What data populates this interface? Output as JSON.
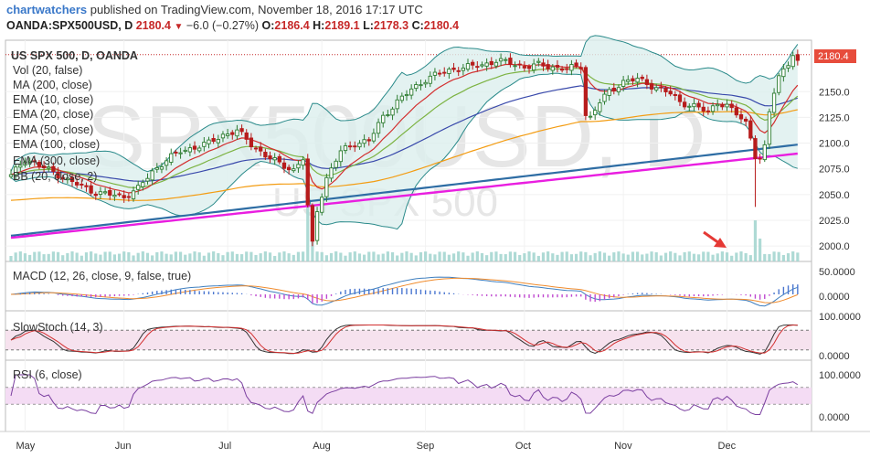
{
  "header": {
    "brand": "chartwatchers",
    "published": "published on TradingView.com, November 18, 2016 17:17 UTC",
    "symbol": "OANDA:SPX500USD, D",
    "last": "2180.4",
    "change": "−6.0 (−0.27%)",
    "o_label": "O:",
    "o": "2186.4",
    "h_label": "H:",
    "h": "2189.1",
    "l_label": "L:",
    "l": "2178.3",
    "c_label": "C:",
    "c": "2180.4"
  },
  "watermark": {
    "ticker": "SPX500USD, D",
    "name": "US SPX 500"
  },
  "legend": {
    "main": [
      "US SPX 500, D, OANDA",
      "Vol (20, false)",
      "MA (200, close)",
      "EMA (10, close)",
      "EMA (20, close)",
      "EMA (50, close)",
      "EMA (100, close)",
      "EMA (300, close)",
      "BB (20, close, 2)"
    ],
    "macd": "MACD (12, 26, close, 9, false, true)",
    "stoch": "SlowStoch (14, 3)",
    "rsi": "RSI (6, close)"
  },
  "colors": {
    "up": "#2e7d32",
    "down": "#b71c1c",
    "bb": "#2a8a8a",
    "bb_fill": "#dcefee",
    "ma200": "#e91ee0",
    "ema10": "#d32f2f",
    "ema20": "#7cb342",
    "ema50": "#3949ab",
    "ema100": "#f39c12",
    "ema300": "#2e6da4",
    "volume": "#a5d6d0",
    "last_badge": "#e74c3c",
    "arrow": "#e53935",
    "stoch_fill": "#f6e2ee",
    "rsi_fill": "#f4dcf4"
  },
  "chart_data": {
    "type": "candlestick",
    "period": "daily",
    "x_ticks": [
      "May",
      "Jun",
      "Jul",
      "Aug",
      "Sep",
      "Oct",
      "Nov",
      "Dec"
    ],
    "y_ticks": [
      "2150.0",
      "2125.0",
      "2100.0",
      "2075.0",
      "2050.0",
      "2025.0",
      "2000.0"
    ],
    "ylim": [
      1985,
      2200
    ],
    "last_price_label": "2180.4",
    "close_path": [
      [
        0,
        2068
      ],
      [
        3,
        2085
      ],
      [
        6,
        2078
      ],
      [
        9,
        2072
      ],
      [
        12,
        2064
      ],
      [
        15,
        2058
      ],
      [
        18,
        2052
      ],
      [
        21,
        2050
      ],
      [
        24,
        2048
      ],
      [
        27,
        2056
      ],
      [
        30,
        2072
      ],
      [
        33,
        2084
      ],
      [
        36,
        2092
      ],
      [
        39,
        2096
      ],
      [
        42,
        2100
      ],
      [
        45,
        2108
      ],
      [
        48,
        2112
      ],
      [
        51,
        2099
      ],
      [
        54,
        2088
      ],
      [
        57,
        2080
      ],
      [
        60,
        2074
      ],
      [
        62,
        2085
      ],
      [
        63,
        2038
      ],
      [
        64,
        2002
      ],
      [
        65,
        2035
      ],
      [
        67,
        2066
      ],
      [
        70,
        2092
      ],
      [
        73,
        2100
      ],
      [
        76,
        2102
      ],
      [
        79,
        2126
      ],
      [
        82,
        2140
      ],
      [
        85,
        2152
      ],
      [
        88,
        2162
      ],
      [
        91,
        2168
      ],
      [
        94,
        2172
      ],
      [
        97,
        2174
      ],
      [
        100,
        2176
      ],
      [
        103,
        2180
      ],
      [
        106,
        2178
      ],
      [
        109,
        2174
      ],
      [
        112,
        2176
      ],
      [
        115,
        2174
      ],
      [
        118,
        2172
      ],
      [
        120,
        2174
      ],
      [
        121,
        2175
      ],
      [
        122,
        2128
      ],
      [
        123,
        2125
      ],
      [
        125,
        2140
      ],
      [
        127,
        2150
      ],
      [
        130,
        2160
      ],
      [
        133,
        2162
      ],
      [
        136,
        2156
      ],
      [
        138,
        2152
      ],
      [
        140,
        2148
      ],
      [
        142,
        2140
      ],
      [
        145,
        2136
      ],
      [
        148,
        2130
      ],
      [
        150,
        2140
      ],
      [
        152,
        2136
      ],
      [
        154,
        2128
      ],
      [
        156,
        2120
      ],
      [
        157,
        2106
      ],
      [
        158,
        2088
      ],
      [
        159,
        2084
      ],
      [
        160,
        2095
      ],
      [
        161,
        2130
      ],
      [
        162,
        2150
      ],
      [
        163,
        2165
      ],
      [
        164,
        2172
      ],
      [
        165,
        2178
      ],
      [
        166,
        2186
      ],
      [
        167,
        2180
      ]
    ],
    "ohlc_last": {
      "open": 2186.4,
      "high": 2189.1,
      "low": 2178.3,
      "close": 2180.4
    },
    "macd": {
      "y_ticks": [
        "50.0000",
        "0.0000"
      ]
    },
    "stoch": {
      "y_ticks": [
        "100.0000",
        "0.0000"
      ],
      "upper": 80,
      "lower": 20
    },
    "rsi": {
      "y_ticks": [
        "100.0000",
        "0.0000"
      ],
      "upper": 70,
      "lower": 30
    }
  }
}
